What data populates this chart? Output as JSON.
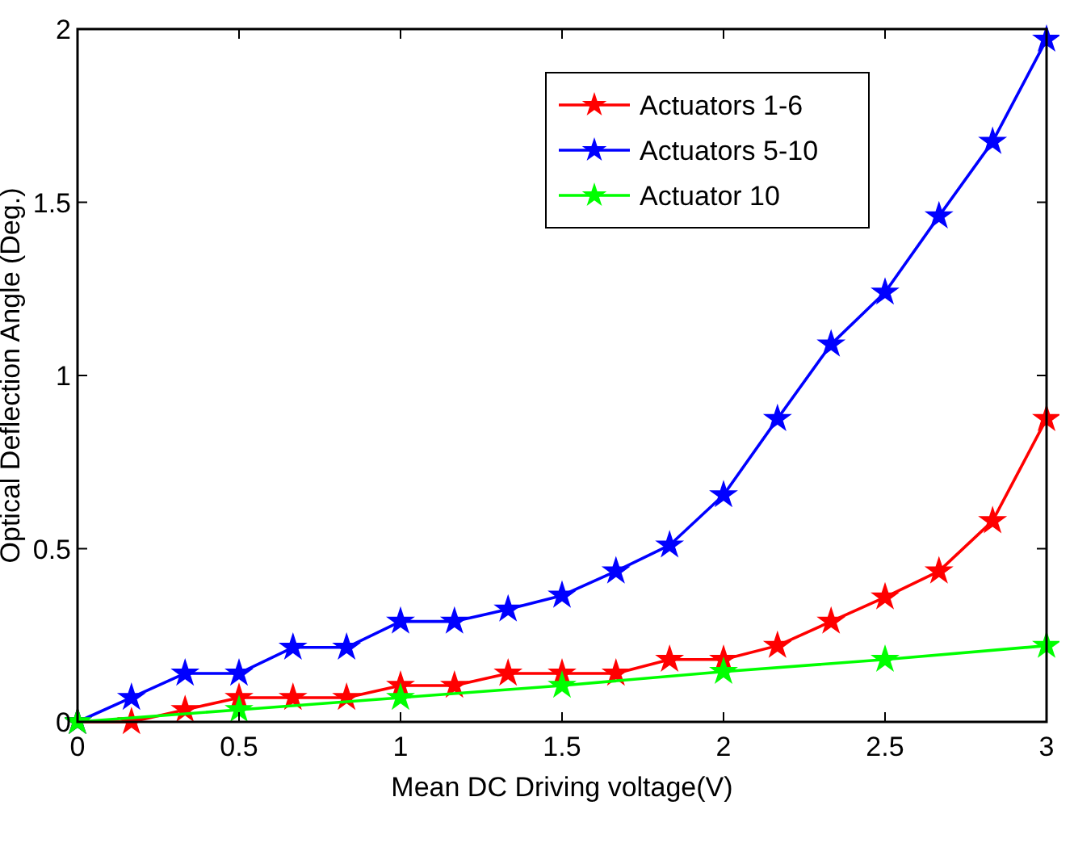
{
  "chart_data": {
    "type": "line",
    "xlabel": "Mean DC Driving voltage(V)",
    "ylabel": "Optical Deflection Angle (Deg.)",
    "xlim": [
      0,
      3
    ],
    "ylim": [
      0,
      2
    ],
    "xticks": [
      0,
      0.5,
      1,
      1.5,
      2,
      2.5,
      3
    ],
    "yticks": [
      0,
      0.5,
      1,
      1.5,
      2
    ],
    "legend": "top right",
    "marker": "star",
    "line_style": "solid",
    "grid": false,
    "series": [
      {
        "name": "Actuators 1-6",
        "color": "#ff0000",
        "x": [
          0,
          0.167,
          0.333,
          0.5,
          0.667,
          0.833,
          1,
          1.167,
          1.333,
          1.5,
          1.667,
          1.833,
          2,
          2.167,
          2.333,
          2.5,
          2.667,
          2.833,
          3
        ],
        "values": [
          0,
          0,
          0.035,
          0.07,
          0.07,
          0.07,
          0.105,
          0.105,
          0.14,
          0.14,
          0.14,
          0.18,
          0.18,
          0.22,
          0.29,
          0.36,
          0.435,
          0.58,
          0.875
        ]
      },
      {
        "name": "Actuators 5-10",
        "color": "#0000ff",
        "x": [
          0,
          0.167,
          0.333,
          0.5,
          0.667,
          0.833,
          1,
          1.167,
          1.333,
          1.5,
          1.667,
          1.833,
          2,
          2.167,
          2.333,
          2.5,
          2.667,
          2.833,
          3
        ],
        "values": [
          0,
          0.07,
          0.14,
          0.14,
          0.215,
          0.215,
          0.29,
          0.29,
          0.325,
          0.365,
          0.435,
          0.51,
          0.655,
          0.875,
          1.09,
          1.24,
          1.46,
          1.675,
          1.97
        ]
      },
      {
        "name": "Actuator 10",
        "color": "#00ff00",
        "x": [
          0,
          0.5,
          1,
          1.5,
          2,
          2.5,
          3
        ],
        "values": [
          0,
          0.035,
          0.07,
          0.105,
          0.145,
          0.18,
          0.22
        ]
      }
    ]
  }
}
